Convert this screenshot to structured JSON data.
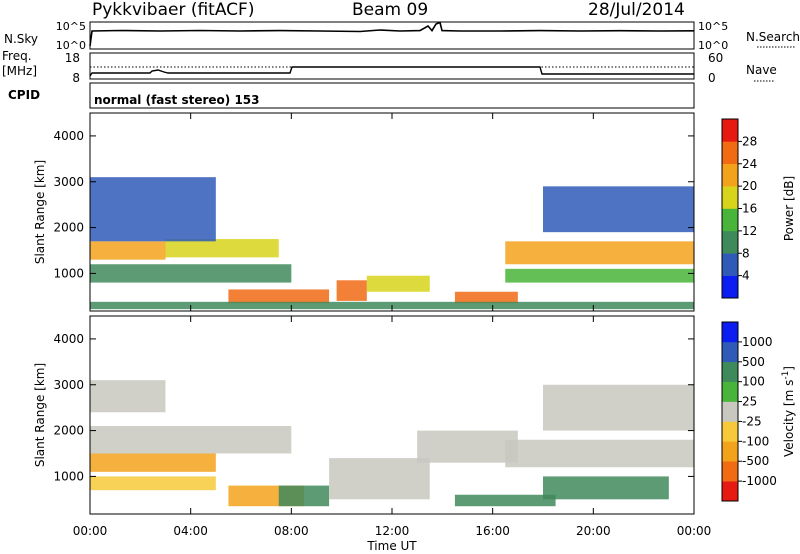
{
  "header": {
    "station": "Pykkvibaer (fitACF)",
    "beam": "Beam 09",
    "date": "28/Jul/2014"
  },
  "top_panels": {
    "nsky_label": "N.Sky",
    "nsky_ticks": [
      "10^5",
      "10^0"
    ],
    "nsearch_label": "N.Search",
    "nsearch_ticks": [
      "10^5",
      "10^0"
    ],
    "freq_label": "Freq.",
    "freq_unit": "[MHz]",
    "freq_ticks": [
      "18",
      "8"
    ],
    "nave_label": "Nave",
    "nave_ticks": [
      "60",
      "0"
    ],
    "cpid_label": "CPID",
    "cpid_text": "normal (fast stereo) 153"
  },
  "chart_data": [
    {
      "type": "heatmap",
      "name": "power",
      "xlabel": "",
      "ylabel": "Slant Range [km]",
      "x_range_hours": [
        0,
        24
      ],
      "ylim": [
        180,
        4500
      ],
      "yticks": [
        "1000",
        "2000",
        "3000",
        "4000"
      ],
      "colorbar": {
        "label": "Power [dB]",
        "ticks": [
          "4",
          "8",
          "12",
          "16",
          "20",
          "24",
          "28"
        ],
        "colors": [
          "#0b1df0",
          "#2f5ab8",
          "#3f8a5c",
          "#49b43a",
          "#d7d41b",
          "#f3a21b",
          "#f16a14",
          "#e61a12"
        ]
      },
      "bands": [
        {
          "start_h": 0.0,
          "end_h": 3.0,
          "low_km": 1300,
          "high_km": 1700,
          "level": 22
        },
        {
          "start_h": 3.0,
          "end_h": 7.5,
          "low_km": 1350,
          "high_km": 1750,
          "level": 18
        },
        {
          "start_h": 0.0,
          "end_h": 8.0,
          "low_km": 800,
          "high_km": 1200,
          "level": 10
        },
        {
          "start_h": 0.0,
          "end_h": 5.0,
          "low_km": 1700,
          "high_km": 3100,
          "level": 6
        },
        {
          "start_h": 5.5,
          "end_h": 9.5,
          "low_km": 350,
          "high_km": 650,
          "level": 26
        },
        {
          "start_h": 9.8,
          "end_h": 11.0,
          "low_km": 400,
          "high_km": 850,
          "level": 27
        },
        {
          "start_h": 11.0,
          "end_h": 13.5,
          "low_km": 600,
          "high_km": 950,
          "level": 18
        },
        {
          "start_h": 14.5,
          "end_h": 17.0,
          "low_km": 350,
          "high_km": 600,
          "level": 24
        },
        {
          "start_h": 16.5,
          "end_h": 24.0,
          "low_km": 1200,
          "high_km": 1700,
          "level": 20
        },
        {
          "start_h": 16.5,
          "end_h": 24.0,
          "low_km": 800,
          "high_km": 1100,
          "level": 12
        },
        {
          "start_h": 18.0,
          "end_h": 24.0,
          "low_km": 1900,
          "high_km": 2900,
          "level": 6
        },
        {
          "start_h": 0.0,
          "end_h": 24.0,
          "low_km": 220,
          "high_km": 380,
          "level": 8
        }
      ]
    },
    {
      "type": "heatmap",
      "name": "velocity",
      "xlabel": "Time UT",
      "ylabel": "Slant Range [km]",
      "x_range_hours": [
        0,
        24
      ],
      "xticks": [
        "00:00",
        "04:00",
        "08:00",
        "12:00",
        "16:00",
        "20:00",
        "00:00"
      ],
      "ylim": [
        180,
        4500
      ],
      "yticks": [
        "1000",
        "2000",
        "3000",
        "4000"
      ],
      "colorbar": {
        "label": "Velocity [m s",
        "label_sup": "-1",
        "label_end": "]",
        "ticks": [
          "-1000",
          "-500",
          "-100",
          "-25",
          "25",
          "100",
          "500",
          "1000"
        ],
        "colors": [
          "#e61a12",
          "#f16a14",
          "#f3a21b",
          "#f7c93a",
          "#c8c8c0",
          "#49b43a",
          "#3f8a5c",
          "#2f5ab8",
          "#0b1df0"
        ]
      },
      "bands": [
        {
          "start_h": 0.0,
          "end_h": 3.0,
          "low_km": 2400,
          "high_km": 3100,
          "level": 0
        },
        {
          "start_h": 0.0,
          "end_h": 8.0,
          "low_km": 1500,
          "high_km": 2100,
          "level": 0
        },
        {
          "start_h": 0.0,
          "end_h": 5.0,
          "low_km": 1100,
          "high_km": 1500,
          "level": -150
        },
        {
          "start_h": 0.0,
          "end_h": 5.0,
          "low_km": 700,
          "high_km": 1000,
          "level": -60
        },
        {
          "start_h": 5.5,
          "end_h": 8.5,
          "low_km": 350,
          "high_km": 800,
          "level": -200
        },
        {
          "start_h": 7.5,
          "end_h": 9.5,
          "low_km": 350,
          "high_km": 800,
          "level": 150
        },
        {
          "start_h": 9.5,
          "end_h": 13.5,
          "low_km": 500,
          "high_km": 1400,
          "level": 0
        },
        {
          "start_h": 13.0,
          "end_h": 17.0,
          "low_km": 1300,
          "high_km": 2000,
          "level": 0
        },
        {
          "start_h": 14.5,
          "end_h": 18.5,
          "low_km": 350,
          "high_km": 600,
          "level": 300
        },
        {
          "start_h": 18.0,
          "end_h": 23.0,
          "low_km": 500,
          "high_km": 1000,
          "level": 300
        },
        {
          "start_h": 16.5,
          "end_h": 24.0,
          "low_km": 1200,
          "high_km": 1800,
          "level": 0
        },
        {
          "start_h": 18.0,
          "end_h": 24.0,
          "low_km": 2000,
          "high_km": 3000,
          "level": 0
        }
      ]
    }
  ]
}
